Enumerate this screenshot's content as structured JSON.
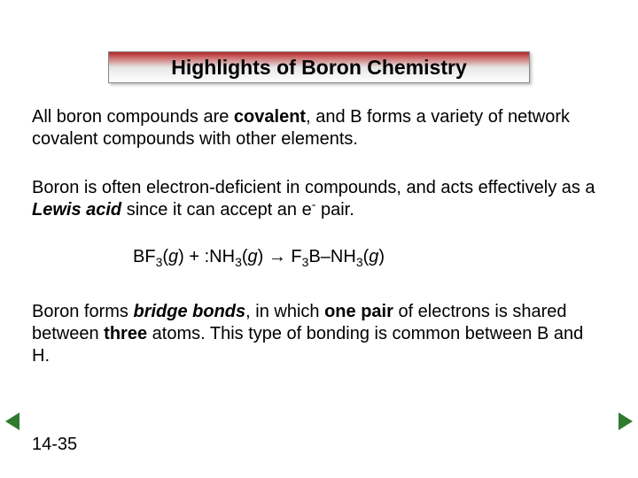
{
  "title": "Highlights of Boron Chemistry",
  "p1": {
    "pre": "All boron compounds are ",
    "covalent": "covalent",
    "post": ", and B forms a variety of network covalent compounds with other elements."
  },
  "p2": {
    "pre": "Boron is often electron-deficient in compounds, and acts effectively as a ",
    "lewis": "Lewis acid",
    "post1": " since it can accept an e",
    "post2": " pair."
  },
  "eq": {
    "t1": "BF",
    "s3a": "3",
    "t2": "(",
    "g1": "g",
    "t3": ") + :NH",
    "s3b": "3",
    "t4": "(",
    "g2": "g",
    "t5": ") → F",
    "s3c": "3",
    "t6": "B–NH",
    "s3d": "3",
    "t7": "(",
    "g3": "g",
    "t8": ")"
  },
  "p3": {
    "pre": "Boron forms ",
    "bridge": "bridge bonds",
    "mid1": ", in which ",
    "onepair": "one pair",
    "mid2": " of electrons is shared between ",
    "three": "three",
    "post": " atoms. This type of bonding is common between B and H."
  },
  "pagenum": "14-35",
  "minus": "-",
  "colors": {
    "accent_top": "#b0262a",
    "nav_arrow": "#2f7a2f",
    "text": "#000000",
    "bg": "#ffffff"
  }
}
